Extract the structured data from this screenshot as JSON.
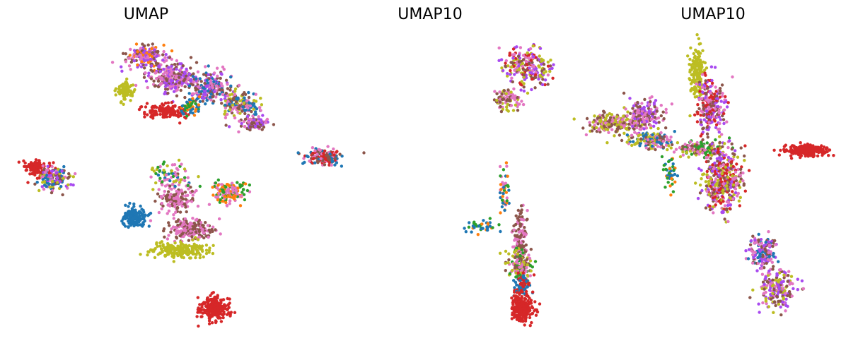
{
  "chart_data": [
    {
      "type": "scatter",
      "title": "UMAP",
      "xlabel": "",
      "ylabel": "",
      "axes": "off",
      "grid": false,
      "legend": "none",
      "point_size": 2.2,
      "palette": {
        "blue": "#1f77b4",
        "orange": "#ff7f0e",
        "green": "#2ca02c",
        "red": "#d62728",
        "purple": "#9467bd",
        "brown": "#8c564b",
        "pink": "#e377c2",
        "olive": "#bcbd22",
        "violet": "#a84af0"
      },
      "clusters": [
        {
          "center": [
            205,
            80
          ],
          "spread": [
            22,
            12
          ],
          "n": 180,
          "colors": [
            "violet",
            "brown",
            "pink",
            "orange"
          ]
        },
        {
          "center": [
            240,
            110
          ],
          "spread": [
            28,
            18
          ],
          "n": 260,
          "colors": [
            "pink",
            "brown",
            "violet"
          ]
        },
        {
          "center": [
            295,
            125
          ],
          "spread": [
            25,
            18
          ],
          "n": 220,
          "colors": [
            "violet",
            "pink",
            "brown",
            "blue"
          ]
        },
        {
          "center": [
            340,
            148
          ],
          "spread": [
            22,
            14
          ],
          "n": 170,
          "colors": [
            "pink",
            "brown",
            "olive",
            "blue"
          ]
        },
        {
          "center": [
            360,
            175
          ],
          "spread": [
            18,
            8
          ],
          "n": 90,
          "colors": [
            "pink",
            "brown",
            "violet"
          ]
        },
        {
          "center": [
            178,
            128
          ],
          "spread": [
            10,
            12
          ],
          "n": 90,
          "colors": [
            "olive"
          ]
        },
        {
          "center": [
            235,
            158
          ],
          "spread": [
            24,
            8
          ],
          "n": 130,
          "colors": [
            "red"
          ]
        },
        {
          "center": [
            270,
            150
          ],
          "spread": [
            12,
            10
          ],
          "n": 50,
          "colors": [
            "green",
            "orange",
            "blue"
          ]
        },
        {
          "center": [
            52,
            238
          ],
          "spread": [
            14,
            12
          ],
          "n": 120,
          "colors": [
            "red"
          ]
        },
        {
          "center": [
            78,
            252
          ],
          "spread": [
            18,
            14
          ],
          "n": 150,
          "colors": [
            "pink",
            "violet",
            "blue",
            "brown",
            "olive"
          ]
        },
        {
          "center": [
            190,
            308
          ],
          "spread": [
            14,
            12
          ],
          "n": 160,
          "colors": [
            "blue"
          ]
        },
        {
          "center": [
            250,
            280
          ],
          "spread": [
            20,
            20
          ],
          "n": 150,
          "colors": [
            "pink",
            "brown"
          ]
        },
        {
          "center": [
            270,
            325
          ],
          "spread": [
            28,
            12
          ],
          "n": 200,
          "colors": [
            "pink",
            "brown"
          ]
        },
        {
          "center": [
            255,
            355
          ],
          "spread": [
            32,
            10
          ],
          "n": 200,
          "colors": [
            "olive"
          ]
        },
        {
          "center": [
            325,
            272
          ],
          "spread": [
            20,
            12
          ],
          "n": 150,
          "colors": [
            "green",
            "orange",
            "pink"
          ]
        },
        {
          "center": [
            242,
            248
          ],
          "spread": [
            30,
            14
          ],
          "n": 70,
          "colors": [
            "blue",
            "green",
            "pink",
            "olive"
          ]
        },
        {
          "center": [
            303,
            437
          ],
          "spread": [
            16,
            13
          ],
          "n": 240,
          "colors": [
            "red"
          ]
        }
      ]
    },
    {
      "type": "scatter",
      "title": "UMAP10",
      "xlabel": "",
      "ylabel": "",
      "axes": "off",
      "grid": false,
      "legend": "none",
      "point_size": 2.2,
      "palette": {
        "blue": "#1f77b4",
        "orange": "#ff7f0e",
        "green": "#2ca02c",
        "red": "#d62728",
        "purple": "#9467bd",
        "brown": "#8c564b",
        "pink": "#e377c2",
        "olive": "#bcbd22",
        "violet": "#a84af0"
      },
      "clusters": [
        {
          "center": [
            458,
            222
          ],
          "spread": [
            22,
            10
          ],
          "n": 150,
          "colors": [
            "red",
            "pink",
            "blue",
            "brown"
          ]
        },
        {
          "center": [
            745,
            95
          ],
          "spread": [
            28,
            22
          ],
          "n": 230,
          "colors": [
            "olive",
            "pink",
            "violet",
            "brown",
            "red"
          ]
        },
        {
          "center": [
            718,
            140
          ],
          "spread": [
            16,
            16
          ],
          "n": 90,
          "colors": [
            "pink",
            "brown",
            "olive"
          ]
        },
        {
          "center": [
            712,
            270
          ],
          "spread": [
            6,
            30
          ],
          "n": 45,
          "colors": [
            "orange",
            "blue",
            "green",
            "pink"
          ]
        },
        {
          "center": [
            680,
            320
          ],
          "spread": [
            18,
            10
          ],
          "n": 40,
          "colors": [
            "blue",
            "green",
            "orange"
          ]
        },
        {
          "center": [
            735,
            330
          ],
          "spread": [
            8,
            30
          ],
          "n": 120,
          "colors": [
            "pink",
            "brown"
          ]
        },
        {
          "center": [
            735,
            375
          ],
          "spread": [
            14,
            18
          ],
          "n": 140,
          "colors": [
            "brown",
            "olive",
            "pink",
            "green"
          ]
        },
        {
          "center": [
            738,
            405
          ],
          "spread": [
            10,
            12
          ],
          "n": 80,
          "colors": [
            "blue",
            "red"
          ]
        },
        {
          "center": [
            738,
            437
          ],
          "spread": [
            14,
            16
          ],
          "n": 220,
          "colors": [
            "red"
          ]
        }
      ]
    },
    {
      "type": "scatter",
      "title": "UMAP10",
      "xlabel": "",
      "ylabel": "",
      "axes": "off",
      "grid": false,
      "legend": "none",
      "point_size": 2.2,
      "palette": {
        "blue": "#1f77b4",
        "orange": "#ff7f0e",
        "green": "#2ca02c",
        "red": "#d62728",
        "purple": "#9467bd",
        "brown": "#8c564b",
        "pink": "#e377c2",
        "olive": "#bcbd22",
        "violet": "#a84af0"
      },
      "clusters": [
        {
          "center": [
            985,
            100
          ],
          "spread": [
            8,
            30
          ],
          "n": 150,
          "colors": [
            "olive"
          ]
        },
        {
          "center": [
            1005,
            150
          ],
          "spread": [
            16,
            30
          ],
          "n": 250,
          "colors": [
            "violet",
            "pink",
            "brown",
            "red"
          ]
        },
        {
          "center": [
            870,
            175
          ],
          "spread": [
            34,
            12
          ],
          "n": 200,
          "colors": [
            "olive",
            "pink",
            "brown"
          ]
        },
        {
          "center": [
            912,
            162
          ],
          "spread": [
            22,
            18
          ],
          "n": 160,
          "colors": [
            "pink",
            "brown",
            "violet"
          ]
        },
        {
          "center": [
            920,
            198
          ],
          "spread": [
            24,
            10
          ],
          "n": 150,
          "colors": [
            "blue",
            "pink",
            "olive",
            "brown"
          ]
        },
        {
          "center": [
            985,
            210
          ],
          "spread": [
            30,
            8
          ],
          "n": 140,
          "colors": [
            "green",
            "olive",
            "brown",
            "pink"
          ]
        },
        {
          "center": [
            948,
            245
          ],
          "spread": [
            6,
            20
          ],
          "n": 45,
          "colors": [
            "blue",
            "green",
            "orange"
          ]
        },
        {
          "center": [
            1022,
            255
          ],
          "spread": [
            22,
            40
          ],
          "n": 420,
          "colors": [
            "pink",
            "brown",
            "violet",
            "red",
            "olive"
          ]
        },
        {
          "center": [
            1140,
            213
          ],
          "spread": [
            26,
            6
          ],
          "n": 230,
          "colors": [
            "red"
          ]
        },
        {
          "center": [
            1080,
            360
          ],
          "spread": [
            16,
            20
          ],
          "n": 160,
          "colors": [
            "brown",
            "pink",
            "blue",
            "violet"
          ]
        },
        {
          "center": [
            1100,
            410
          ],
          "spread": [
            22,
            22
          ],
          "n": 180,
          "colors": [
            "olive",
            "pink",
            "brown",
            "violet"
          ]
        }
      ]
    }
  ]
}
